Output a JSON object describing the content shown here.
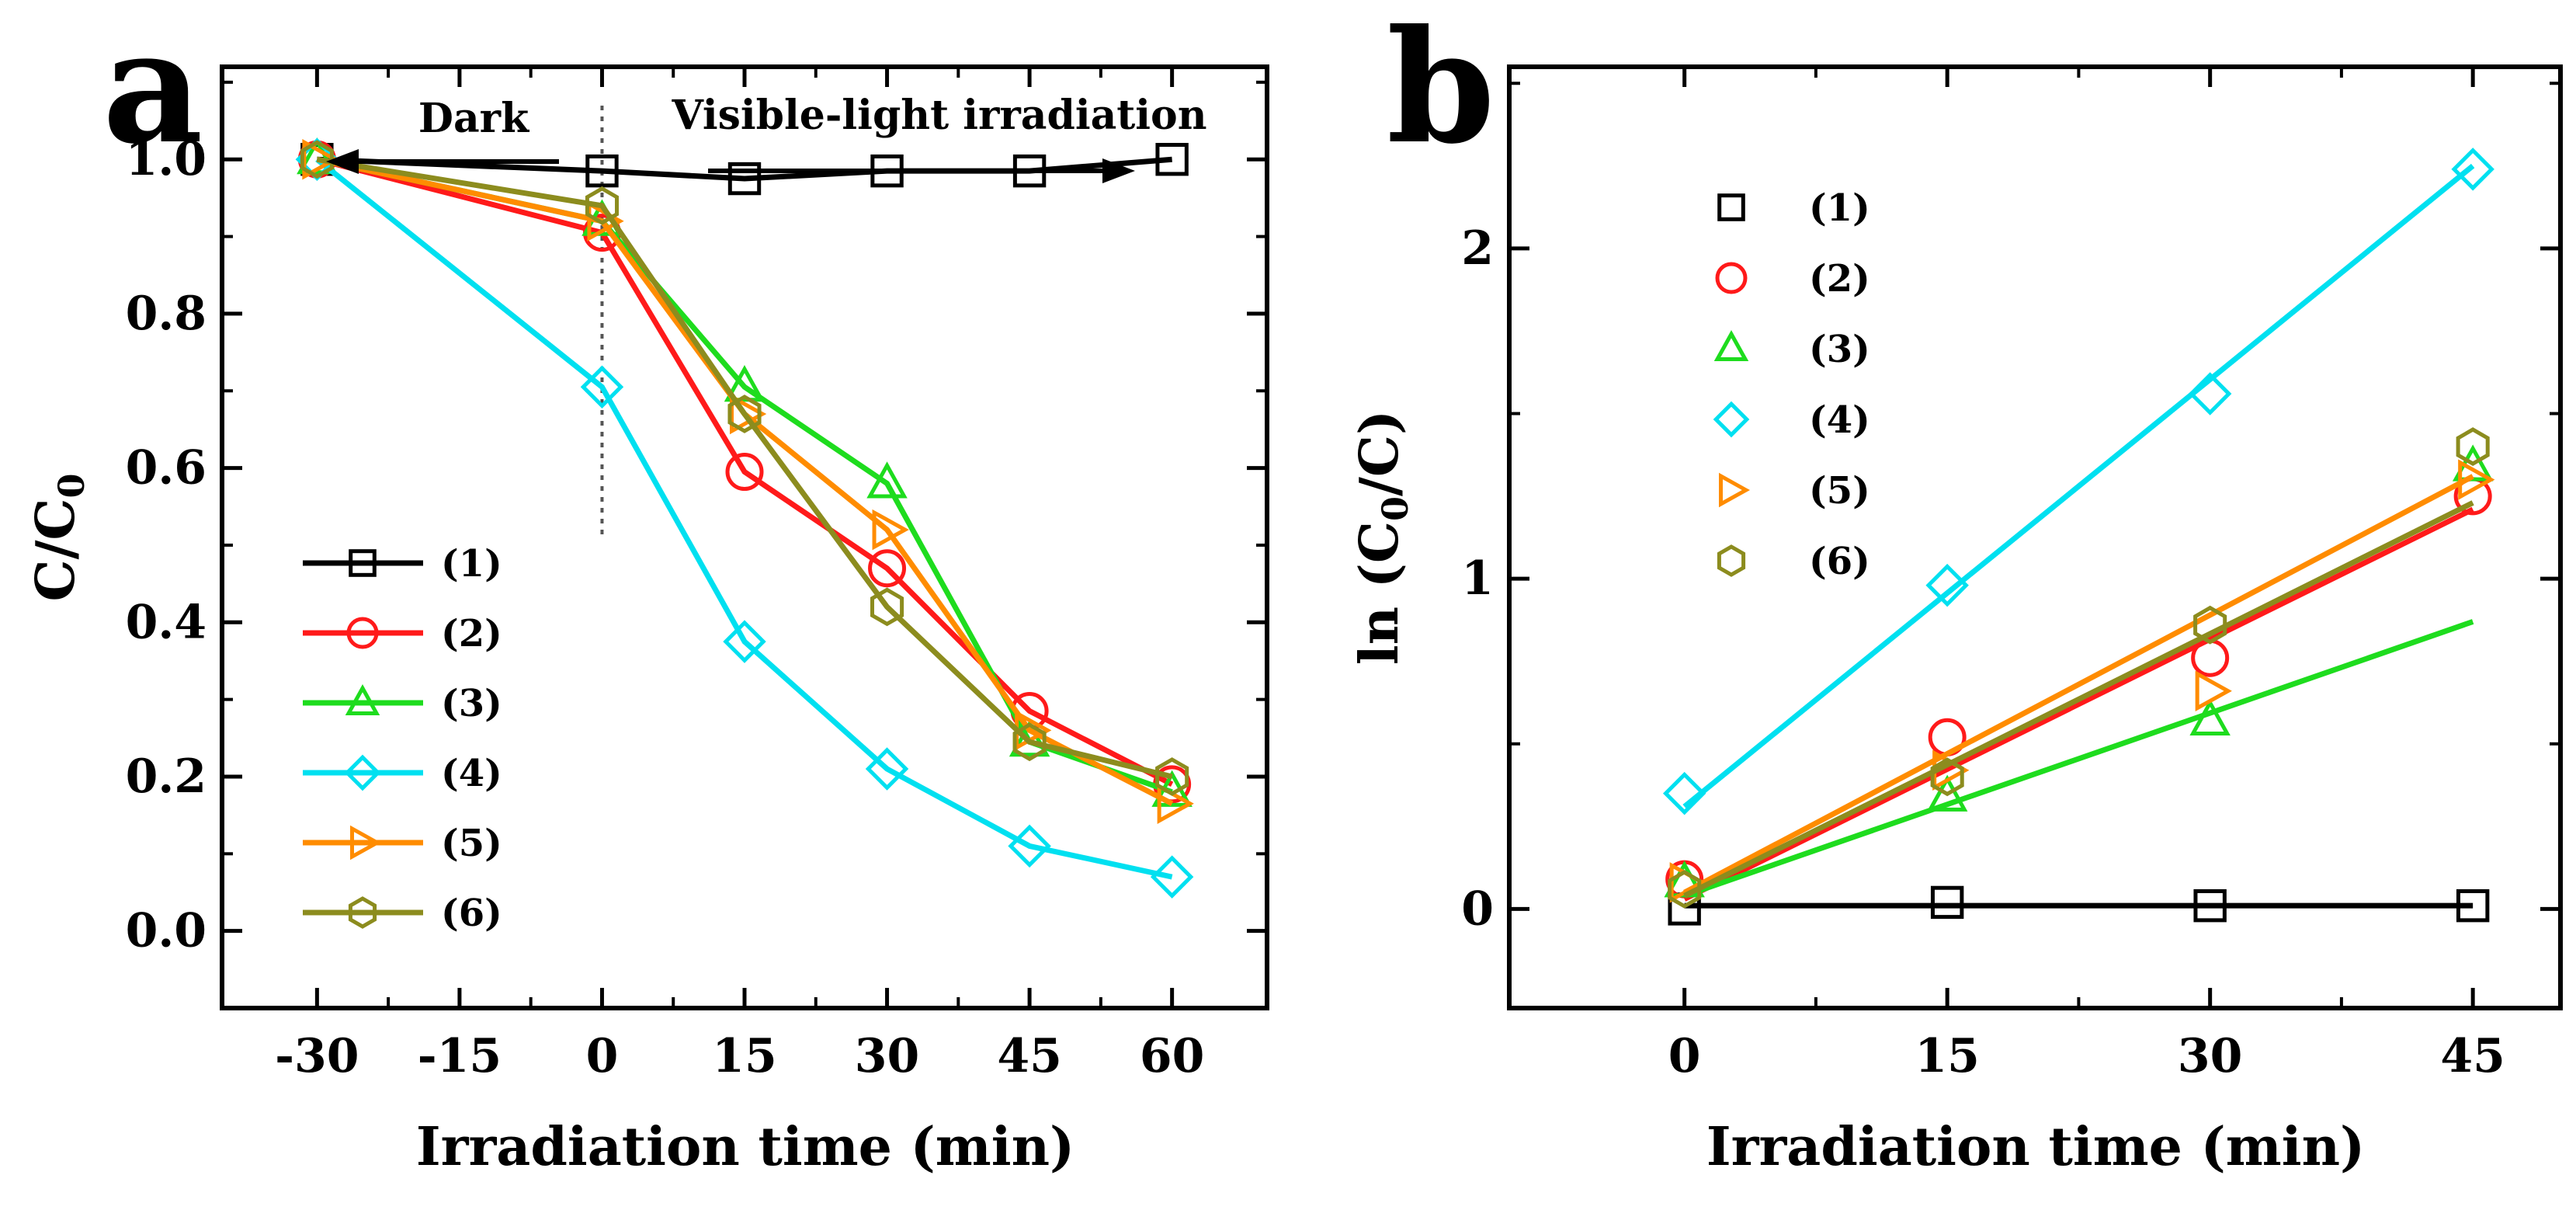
{
  "chart_data": [
    {
      "panel_label": "a",
      "type": "line",
      "xlabel": "Irradiation time (min)",
      "ylabel_main": "C/C",
      "ylabel_sub": "0",
      "xlim": [
        -40,
        70
      ],
      "ylim": [
        -0.1,
        1.12
      ],
      "xticks": [
        -30,
        -15,
        0,
        15,
        30,
        45,
        60
      ],
      "xtick_labels": [
        "-30",
        "-15",
        "0",
        "15",
        "30",
        "45",
        "60"
      ],
      "yticks": [
        0.0,
        0.2,
        0.4,
        0.6,
        0.8,
        1.0
      ],
      "ytick_labels": [
        "0.0",
        "0.2",
        "0.4",
        "0.6",
        "0.8",
        "1.0"
      ],
      "grid": false,
      "legend_position": "lower-left",
      "x": [
        -30,
        0,
        15,
        30,
        45,
        60
      ],
      "series": [
        {
          "name": "(1)",
          "marker": "square",
          "color": "#000000",
          "values": [
            1.0,
            0.985,
            0.975,
            0.985,
            0.985,
            1.0
          ]
        },
        {
          "name": "(2)",
          "marker": "circle",
          "color": "#ff1a1a",
          "values": [
            1.0,
            0.905,
            0.595,
            0.47,
            0.285,
            0.19
          ]
        },
        {
          "name": "(3)",
          "marker": "triangle",
          "color": "#1edc1e",
          "values": [
            1.0,
            0.92,
            0.705,
            0.58,
            0.245,
            0.18
          ]
        },
        {
          "name": "(4)",
          "marker": "diamond",
          "color": "#00e0f0",
          "values": [
            1.0,
            0.705,
            0.375,
            0.21,
            0.11,
            0.07
          ]
        },
        {
          "name": "(5)",
          "marker": "triangle-right",
          "color": "#ff8c00",
          "values": [
            1.0,
            0.92,
            0.67,
            0.52,
            0.26,
            0.165
          ]
        },
        {
          "name": "(6)",
          "marker": "hexagon",
          "color": "#8c8c1e",
          "values": [
            1.0,
            0.94,
            0.67,
            0.42,
            0.245,
            0.2
          ]
        }
      ],
      "annotations": {
        "dark_label": "Dark",
        "visible_label": "Visible-light irradiation",
        "divider_x": 0
      }
    },
    {
      "panel_label": "b",
      "type": "scatter",
      "xlabel": "Irradiation time (min)",
      "ylabel_pre": "ln (C",
      "ylabel_sub": "0",
      "ylabel_post": "/C)",
      "xlim": [
        -10,
        50
      ],
      "ylim": [
        -0.3,
        2.55
      ],
      "xticks": [
        0,
        15,
        30,
        45
      ],
      "xtick_labels": [
        "0",
        "15",
        "30",
        "45"
      ],
      "yticks": [
        0,
        1,
        2
      ],
      "ytick_labels": [
        "0",
        "1",
        "2"
      ],
      "grid": false,
      "legend_position": "top-left",
      "x": [
        0,
        15,
        30,
        45
      ],
      "series": [
        {
          "name": "(1)",
          "marker": "square",
          "color": "#000000",
          "values": [
            0.0,
            0.02,
            0.01,
            0.01
          ],
          "fit": [
            0.01,
            0.01
          ]
        },
        {
          "name": "(2)",
          "marker": "circle",
          "color": "#ff1a1a",
          "values": [
            0.09,
            0.52,
            0.76,
            1.25
          ],
          "fit": [
            0.03,
            1.21
          ]
        },
        {
          "name": "(3)",
          "marker": "triangle",
          "color": "#1edc1e",
          "values": [
            0.08,
            0.34,
            0.57,
            1.34
          ],
          "fit": [
            0.04,
            0.87
          ]
        },
        {
          "name": "(4)",
          "marker": "diamond",
          "color": "#00e0f0",
          "values": [
            0.35,
            0.98,
            1.56,
            2.24
          ],
          "fit": [
            0.31,
            2.25
          ]
        },
        {
          "name": "(5)",
          "marker": "triangle-right",
          "color": "#ff8c00",
          "values": [
            0.08,
            0.42,
            0.66,
            1.3
          ],
          "fit": [
            0.05,
            1.31
          ]
        },
        {
          "name": "(6)",
          "marker": "hexagon",
          "color": "#8c8c1e",
          "values": [
            0.06,
            0.4,
            0.86,
            1.4
          ],
          "fit": [
            0.04,
            1.23
          ]
        }
      ]
    }
  ]
}
